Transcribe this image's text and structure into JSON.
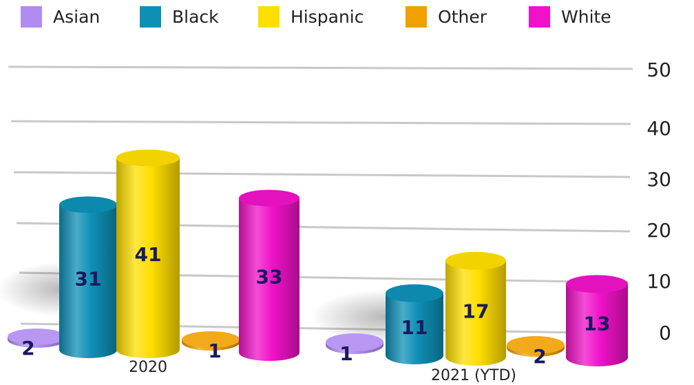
{
  "chart_data": {
    "type": "bar",
    "categories": [
      "2020",
      "2021 (YTD)"
    ],
    "series": [
      {
        "name": "Asian",
        "values": [
          2,
          1
        ],
        "color": "#b08cf0"
      },
      {
        "name": "Black",
        "values": [
          31,
          11
        ],
        "color": "#0e90b6"
      },
      {
        "name": "Hispanic",
        "values": [
          41,
          17
        ],
        "color": "#ffde00"
      },
      {
        "name": "Other",
        "values": [
          1,
          2
        ],
        "color": "#f0a000"
      },
      {
        "name": "White",
        "values": [
          33,
          13
        ],
        "color": "#f012c8"
      }
    ],
    "data_labels": [
      [
        "2",
        "31",
        "41",
        "1",
        "33"
      ],
      [
        "1",
        "11",
        "17",
        "2",
        "13"
      ]
    ],
    "ylim": [
      0,
      50
    ],
    "yticks": [
      "0",
      "10",
      "20",
      "30",
      "40",
      "50"
    ],
    "grid": true,
    "legend_position": "top",
    "label_color": "#1a1a5e"
  }
}
